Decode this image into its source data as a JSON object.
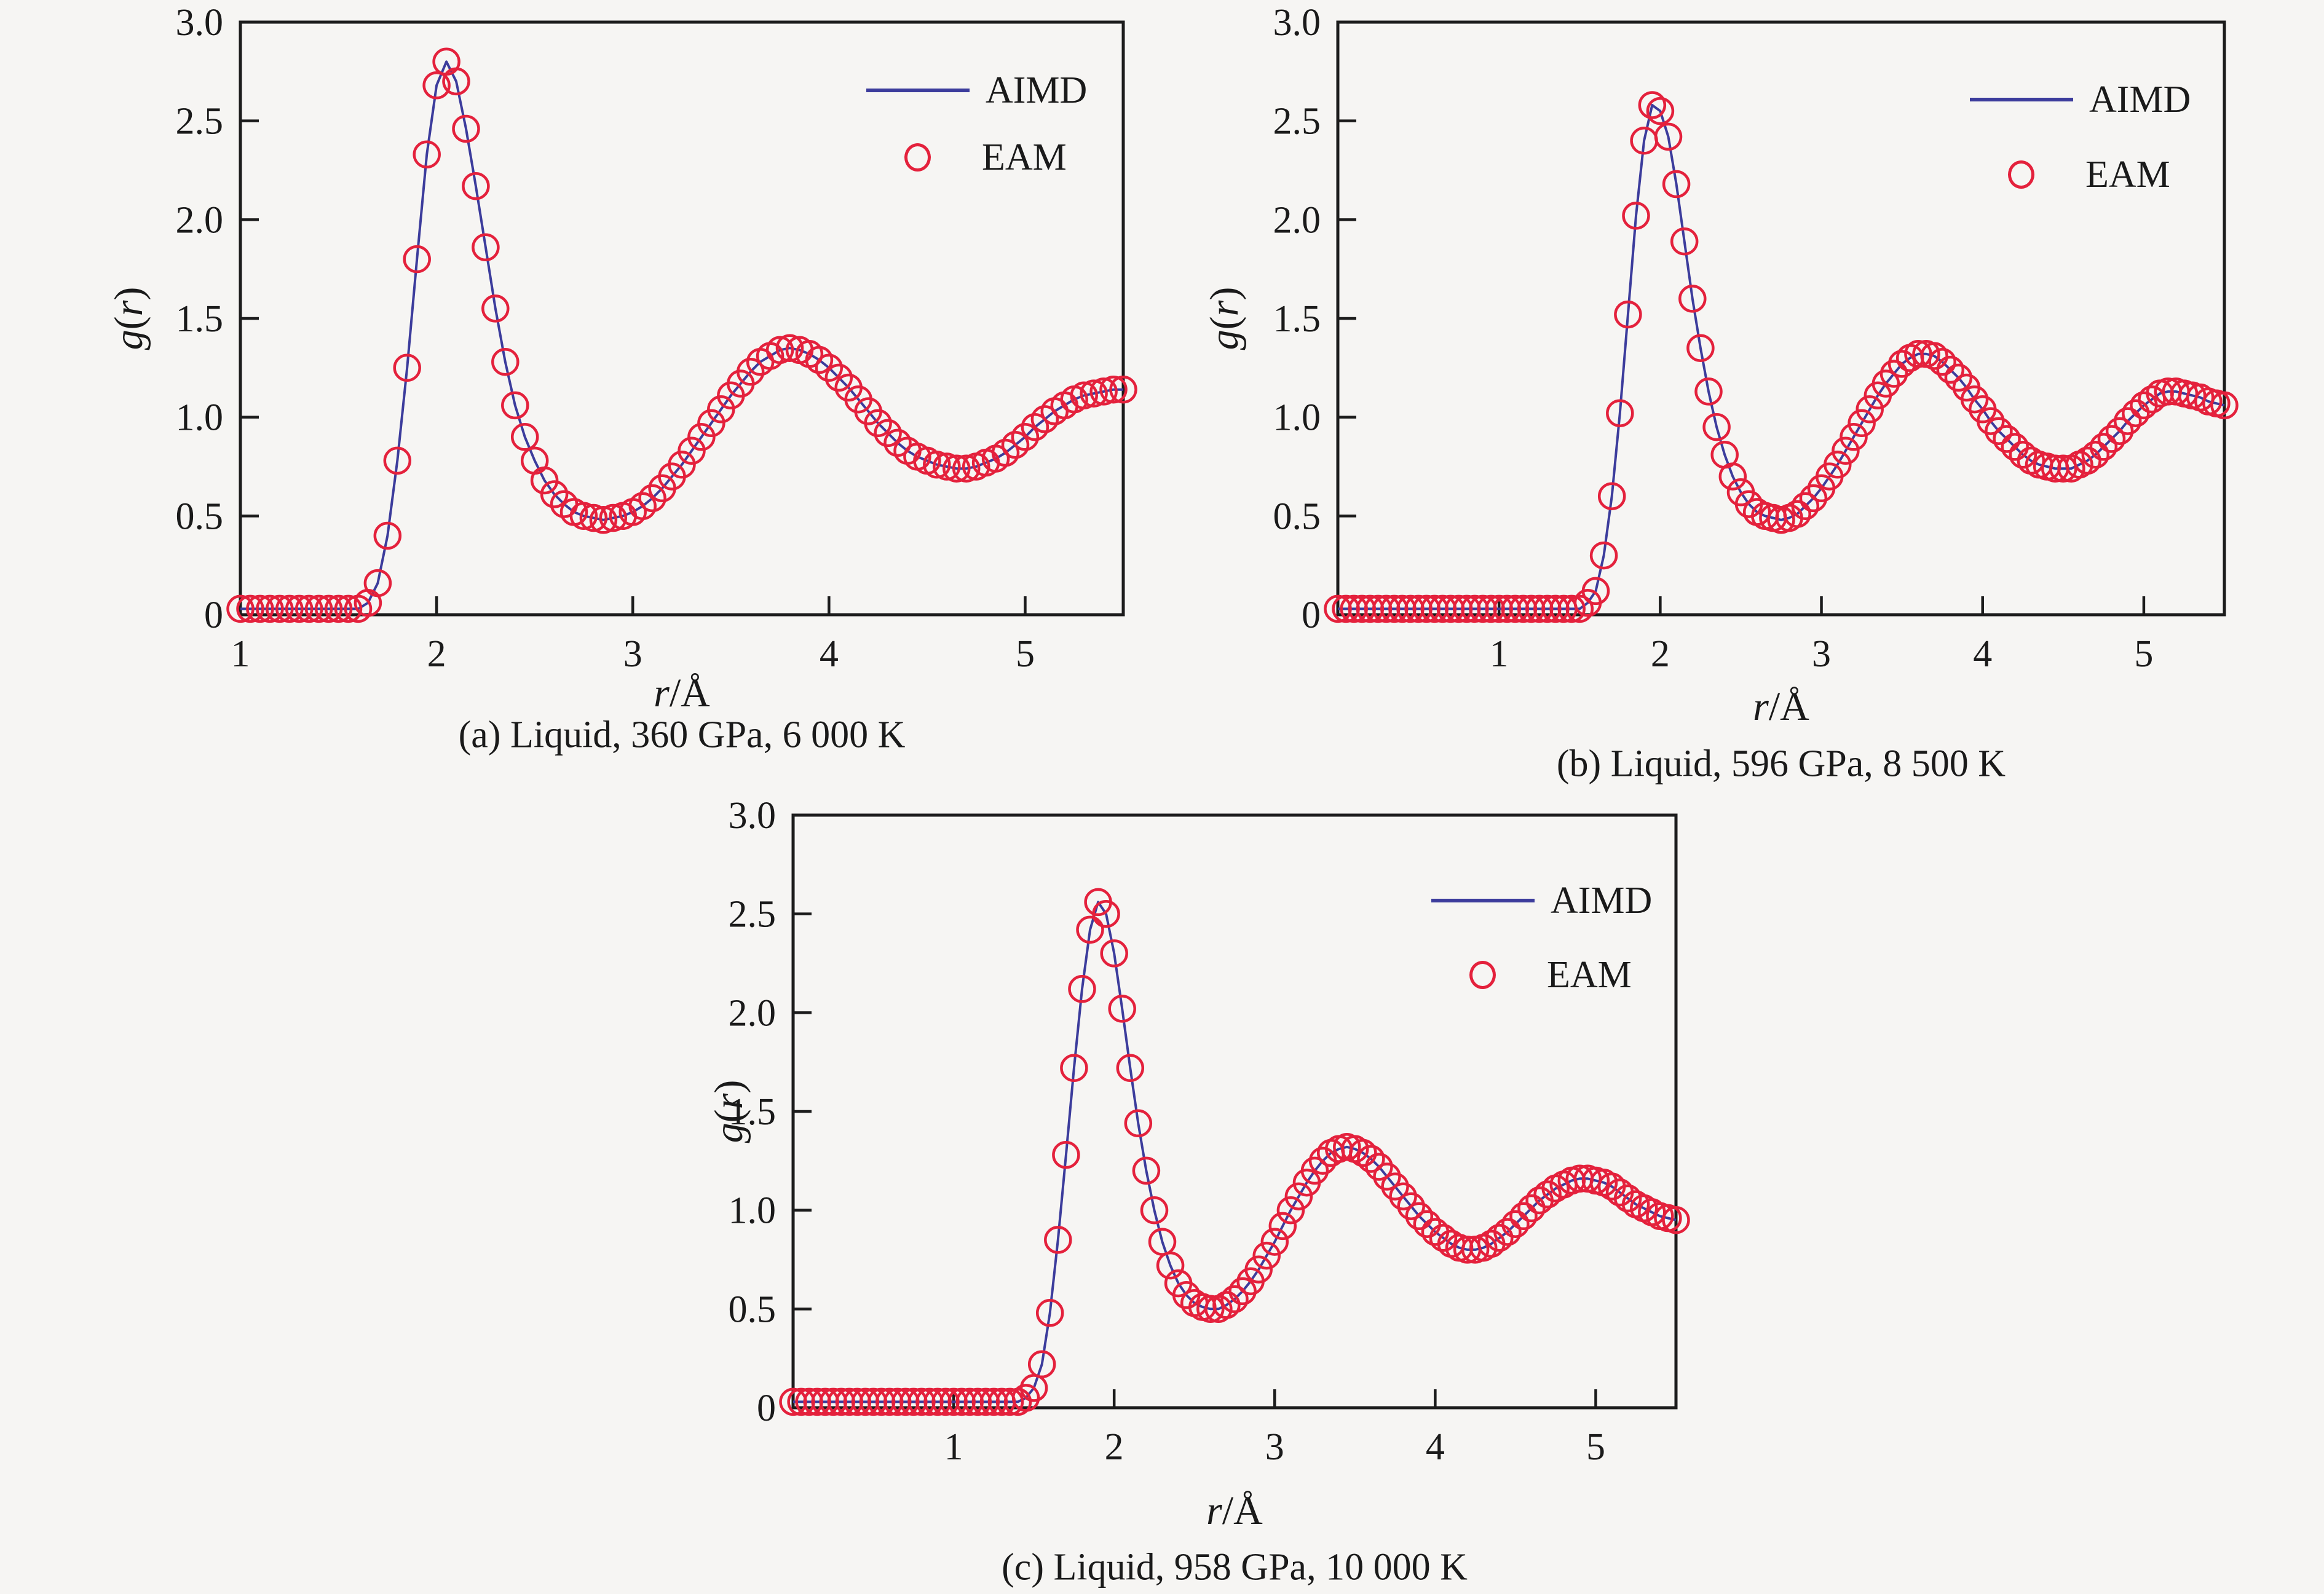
{
  "figure": {
    "background_color": "#f6f5f3",
    "axis_color": "#1c1c1c",
    "text_color": "#1a1a1a",
    "aimd_line_color": "#3c3c9c",
    "eam_marker_color": "#e4213c"
  },
  "chart_data": [
    {
      "panel": "a",
      "type": "line",
      "caption": "(a) Liquid, 360 GPa, 6 000 K",
      "xlabel": {
        "italic": "r",
        "rest": "/Å"
      },
      "ylabel": {
        "g": "g",
        "open": "(",
        "r": "r",
        "close": ")"
      },
      "xlim": [
        1.0,
        5.5
      ],
      "ylim": [
        0,
        3.0
      ],
      "xtick_values": [
        1,
        2,
        3,
        4,
        5
      ],
      "xtick_labels": [
        "1",
        "2",
        "3",
        "4",
        "5"
      ],
      "ytick_values": [
        0,
        0.5,
        1.0,
        1.5,
        2.0,
        2.5,
        3.0
      ],
      "ytick_labels": [
        "0",
        "0.5",
        "1.0",
        "1.5",
        "2.0",
        "2.5",
        "3.0"
      ],
      "legend": [
        {
          "label": "AIMD",
          "marker": "line"
        },
        {
          "label": "EAM",
          "marker": "circle"
        }
      ],
      "data": {
        "r_start": 1.0,
        "r_step": 0.05,
        "g": [
          0.03,
          0.03,
          0.03,
          0.03,
          0.03,
          0.03,
          0.03,
          0.03,
          0.03,
          0.03,
          0.03,
          0.03,
          0.03,
          0.06,
          0.16,
          0.4,
          0.78,
          1.25,
          1.8,
          2.33,
          2.68,
          2.8,
          2.7,
          2.46,
          2.17,
          1.86,
          1.55,
          1.28,
          1.06,
          0.9,
          0.78,
          0.68,
          0.61,
          0.56,
          0.52,
          0.5,
          0.49,
          0.48,
          0.49,
          0.5,
          0.52,
          0.55,
          0.59,
          0.64,
          0.7,
          0.76,
          0.83,
          0.9,
          0.97,
          1.04,
          1.11,
          1.17,
          1.23,
          1.28,
          1.31,
          1.34,
          1.35,
          1.34,
          1.32,
          1.29,
          1.25,
          1.2,
          1.15,
          1.09,
          1.03,
          0.97,
          0.92,
          0.87,
          0.83,
          0.8,
          0.78,
          0.76,
          0.75,
          0.74,
          0.74,
          0.75,
          0.77,
          0.79,
          0.82,
          0.86,
          0.9,
          0.95,
          0.99,
          1.03,
          1.06,
          1.09,
          1.11,
          1.12,
          1.13,
          1.14,
          1.14
        ]
      }
    },
    {
      "panel": "b",
      "type": "line",
      "caption": "(b) Liquid, 596 GPa, 8 500 K",
      "xlabel": {
        "italic": "r",
        "rest": "/Å"
      },
      "ylabel": {
        "g": "g",
        "open": "(",
        "r": "r",
        "close": ")"
      },
      "xlim": [
        0.0,
        5.5
      ],
      "ylim": [
        0,
        3.0
      ],
      "xtick_values": [
        1,
        2,
        3,
        4,
        5
      ],
      "xtick_labels": [
        "1",
        "2",
        "3",
        "4",
        "5"
      ],
      "ytick_values": [
        0,
        0.5,
        1.0,
        1.5,
        2.0,
        2.5,
        3.0
      ],
      "ytick_labels": [
        "0",
        "0.5",
        "1.0",
        "1.5",
        "2.0",
        "2.5",
        "3.0"
      ],
      "legend": [
        {
          "label": "AIMD",
          "marker": "line"
        },
        {
          "label": "EAM",
          "marker": "circle"
        }
      ],
      "data": {
        "r_start": 0.0,
        "r_step": 0.05,
        "g": [
          0.03,
          0.03,
          0.03,
          0.03,
          0.03,
          0.03,
          0.03,
          0.03,
          0.03,
          0.03,
          0.03,
          0.03,
          0.03,
          0.03,
          0.03,
          0.03,
          0.03,
          0.03,
          0.03,
          0.03,
          0.03,
          0.03,
          0.03,
          0.03,
          0.03,
          0.03,
          0.03,
          0.03,
          0.03,
          0.03,
          0.03,
          0.06,
          0.12,
          0.3,
          0.6,
          1.02,
          1.52,
          2.02,
          2.4,
          2.58,
          2.55,
          2.42,
          2.18,
          1.89,
          1.6,
          1.35,
          1.13,
          0.95,
          0.81,
          0.7,
          0.62,
          0.56,
          0.52,
          0.5,
          0.49,
          0.48,
          0.49,
          0.51,
          0.55,
          0.59,
          0.64,
          0.7,
          0.76,
          0.83,
          0.9,
          0.97,
          1.04,
          1.11,
          1.17,
          1.22,
          1.27,
          1.3,
          1.32,
          1.32,
          1.31,
          1.28,
          1.24,
          1.2,
          1.15,
          1.09,
          1.04,
          0.98,
          0.93,
          0.89,
          0.85,
          0.81,
          0.78,
          0.76,
          0.75,
          0.74,
          0.74,
          0.74,
          0.76,
          0.78,
          0.81,
          0.85,
          0.89,
          0.93,
          0.98,
          1.02,
          1.06,
          1.09,
          1.12,
          1.13,
          1.13,
          1.12,
          1.11,
          1.1,
          1.08,
          1.07,
          1.06
        ]
      }
    },
    {
      "panel": "c",
      "type": "line",
      "caption": "(c) Liquid, 958 GPa, 10 000 K",
      "xlabel": {
        "italic": "r",
        "rest": "/Å"
      },
      "ylabel": {
        "g": "g",
        "open": "(",
        "r": "r",
        "close": ")"
      },
      "xlim": [
        0.0,
        5.5
      ],
      "ylim": [
        0,
        3.0
      ],
      "xtick_values": [
        1,
        2,
        3,
        4,
        5
      ],
      "xtick_labels": [
        "1",
        "2",
        "3",
        "4",
        "5"
      ],
      "ytick_values": [
        0,
        0.5,
        1.0,
        1.5,
        2.0,
        2.5,
        3.0
      ],
      "ytick_labels": [
        "0",
        "0.5",
        "1.0",
        "1.5",
        "2.0",
        "2.5",
        "3.0"
      ],
      "legend": [
        {
          "label": "AIMD",
          "marker": "line"
        },
        {
          "label": "EAM",
          "marker": "circle"
        }
      ],
      "data": {
        "r_start": 0.0,
        "r_step": 0.05,
        "g": [
          0.03,
          0.03,
          0.03,
          0.03,
          0.03,
          0.03,
          0.03,
          0.03,
          0.03,
          0.03,
          0.03,
          0.03,
          0.03,
          0.03,
          0.03,
          0.03,
          0.03,
          0.03,
          0.03,
          0.03,
          0.03,
          0.03,
          0.03,
          0.03,
          0.03,
          0.03,
          0.03,
          0.03,
          0.03,
          0.05,
          0.1,
          0.22,
          0.48,
          0.85,
          1.28,
          1.72,
          2.12,
          2.42,
          2.56,
          2.5,
          2.3,
          2.02,
          1.72,
          1.44,
          1.2,
          1.0,
          0.84,
          0.72,
          0.63,
          0.57,
          0.53,
          0.51,
          0.5,
          0.5,
          0.52,
          0.55,
          0.59,
          0.64,
          0.7,
          0.77,
          0.84,
          0.92,
          1.0,
          1.07,
          1.14,
          1.2,
          1.25,
          1.29,
          1.31,
          1.32,
          1.31,
          1.29,
          1.26,
          1.22,
          1.17,
          1.12,
          1.07,
          1.02,
          0.97,
          0.93,
          0.89,
          0.86,
          0.83,
          0.81,
          0.8,
          0.8,
          0.81,
          0.83,
          0.86,
          0.89,
          0.93,
          0.97,
          1.01,
          1.05,
          1.08,
          1.11,
          1.13,
          1.15,
          1.16,
          1.16,
          1.15,
          1.14,
          1.12,
          1.09,
          1.06,
          1.03,
          1.01,
          0.99,
          0.97,
          0.96,
          0.95
        ]
      }
    }
  ]
}
